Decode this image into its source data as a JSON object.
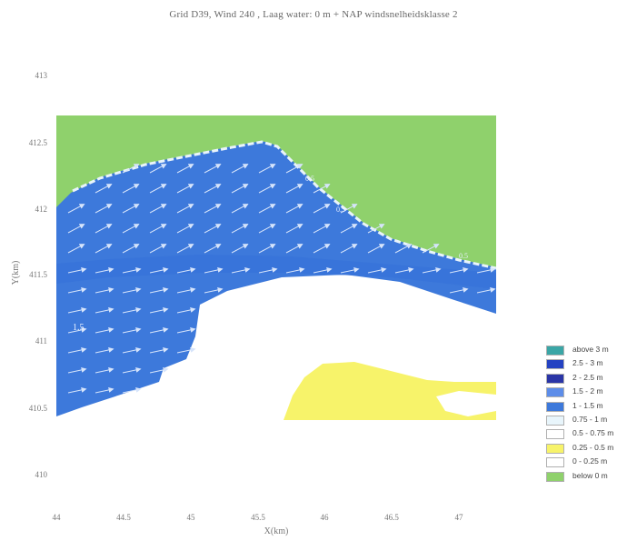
{
  "title": "Grid D39, Wind 240 , Laag water: 0 m + NAP windsnelheidsklasse 2",
  "chart_data": {
    "type": "heatmap",
    "title": "Grid D39, Wind 240 , Laag water: 0 m + NAP windsnelheidsklasse 2",
    "xlabel": "X(km)",
    "ylabel": "Y(km)",
    "xlim": [
      44,
      47.2
    ],
    "ylim": [
      409.7,
      413.1
    ],
    "x_ticks": [
      "44",
      "44.5",
      "45",
      "45.5",
      "46",
      "46.5",
      "47"
    ],
    "y_ticks": [
      "413",
      "412.5",
      "412",
      "411.5",
      "411",
      "410.5",
      "410"
    ],
    "annotations": [
      "1.5",
      "0.5",
      "0.5",
      "0.5"
    ],
    "legend_position": "right",
    "colors": {
      "land": "#8fd16c",
      "deep": "#3d79db",
      "channel": "#2f6bd8",
      "dry": "#ffffff",
      "shoal": "#f7f36a",
      "arrow": "#cfe0fb"
    },
    "legend": [
      {
        "label": "above 3 m",
        "color": "#3aa6a6"
      },
      {
        "label": "2.5 - 3 m",
        "color": "#2442c2"
      },
      {
        "label": "2 - 2.5 m",
        "color": "#2a35a6"
      },
      {
        "label": "1.5 - 2 m",
        "color": "#5d8de9"
      },
      {
        "label": "1 - 1.5 m",
        "color": "#3d79db"
      },
      {
        "label": "0.75 - 1 m",
        "color": "#e8f5fb"
      },
      {
        "label": "0.5 - 0.75 m",
        "color": "#ffffff"
      },
      {
        "label": "0.25 - 0.5 m",
        "color": "#f7f36a"
      },
      {
        "label": "0 - 0.25 m",
        "color": "#ffffff"
      },
      {
        "label": "below 0 m",
        "color": "#8fd16c"
      }
    ]
  }
}
